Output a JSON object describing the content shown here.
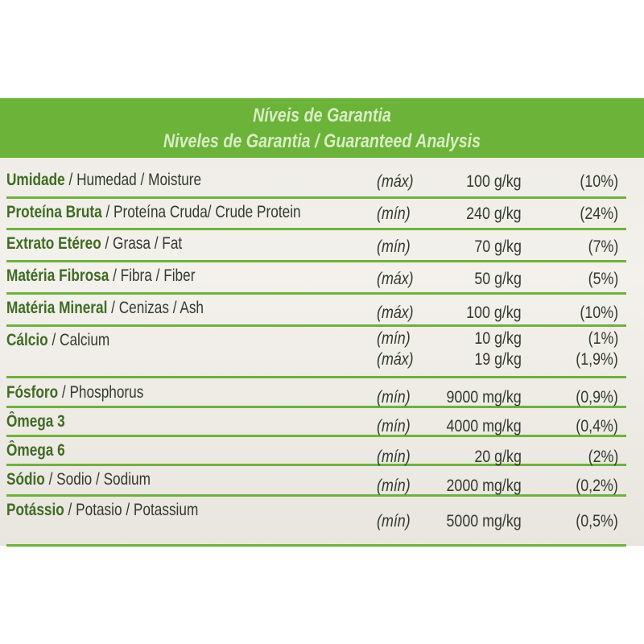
{
  "header": {
    "title_pt": "Níveis de Garantia",
    "title_es_en": "Niveles de Garantia / Guaranteed Analysis"
  },
  "rows": [
    {
      "bold": "Umidade",
      "rest": " / Humedad / Moisture",
      "lines": [
        {
          "qual": "(máx)",
          "value": "100 g/kg",
          "pct": "(10%)"
        }
      ]
    },
    {
      "bold": "Proteína Bruta",
      "rest": " / Proteína Cruda/ Crude Protein",
      "lines": [
        {
          "qual": "(mín)",
          "value": "240 g/kg",
          "pct": "(24%)"
        }
      ]
    },
    {
      "bold": "Extrato Etéreo",
      "rest": " / Grasa / Fat",
      "lines": [
        {
          "qual": "(mín)",
          "value": "70 g/kg",
          "pct": "(7%)"
        }
      ]
    },
    {
      "bold": "Matéria Fibrosa",
      "rest": " / Fibra / Fiber",
      "lines": [
        {
          "qual": "(máx)",
          "value": "50 g/kg",
          "pct": "(5%)"
        }
      ]
    },
    {
      "bold": "Matéria Mineral",
      "rest": " / Cenizas / Ash",
      "lines": [
        {
          "qual": "(máx)",
          "value": "100 g/kg",
          "pct": "(10%)"
        }
      ]
    },
    {
      "bold": "Cálcio",
      "rest": " / Calcium",
      "lines": [
        {
          "qual": "(mín)",
          "value": "10 g/kg",
          "pct": "(1%)"
        },
        {
          "qual": "(máx)",
          "value": "19 g/kg",
          "pct": "(1,9%)"
        }
      ]
    },
    {
      "bold": "Fósforo",
      "rest": " / Phosphorus",
      "lines": [
        {
          "qual": "(mín)",
          "value": "9000 mg/kg",
          "pct": "(0,9%)"
        }
      ]
    },
    {
      "bold": "Ômega 3",
      "rest": "",
      "lines": [
        {
          "qual": "(mín)",
          "value": "4000 mg/kg",
          "pct": "(0,4%)"
        }
      ]
    },
    {
      "bold": "Ômega 6",
      "rest": "",
      "lines": [
        {
          "qual": "(mín)",
          "value": "20 g/kg",
          "pct": "(2%)"
        }
      ]
    },
    {
      "bold": "Sódio",
      "rest": " / Sodio / Sodium",
      "lines": [
        {
          "qual": "(mín)",
          "value": "2000 mg/kg",
          "pct": "(0,2%)"
        }
      ]
    },
    {
      "bold": "Potássio",
      "rest": " / Potasio / Potassium",
      "lines": [
        {
          "qual": "(mín)",
          "value": "5000 mg/kg",
          "pct": "(0,5%)"
        }
      ]
    }
  ],
  "colors": {
    "header_green": "#6cb33a",
    "bold_green": "#3f6b22",
    "text": "#333a2e"
  }
}
